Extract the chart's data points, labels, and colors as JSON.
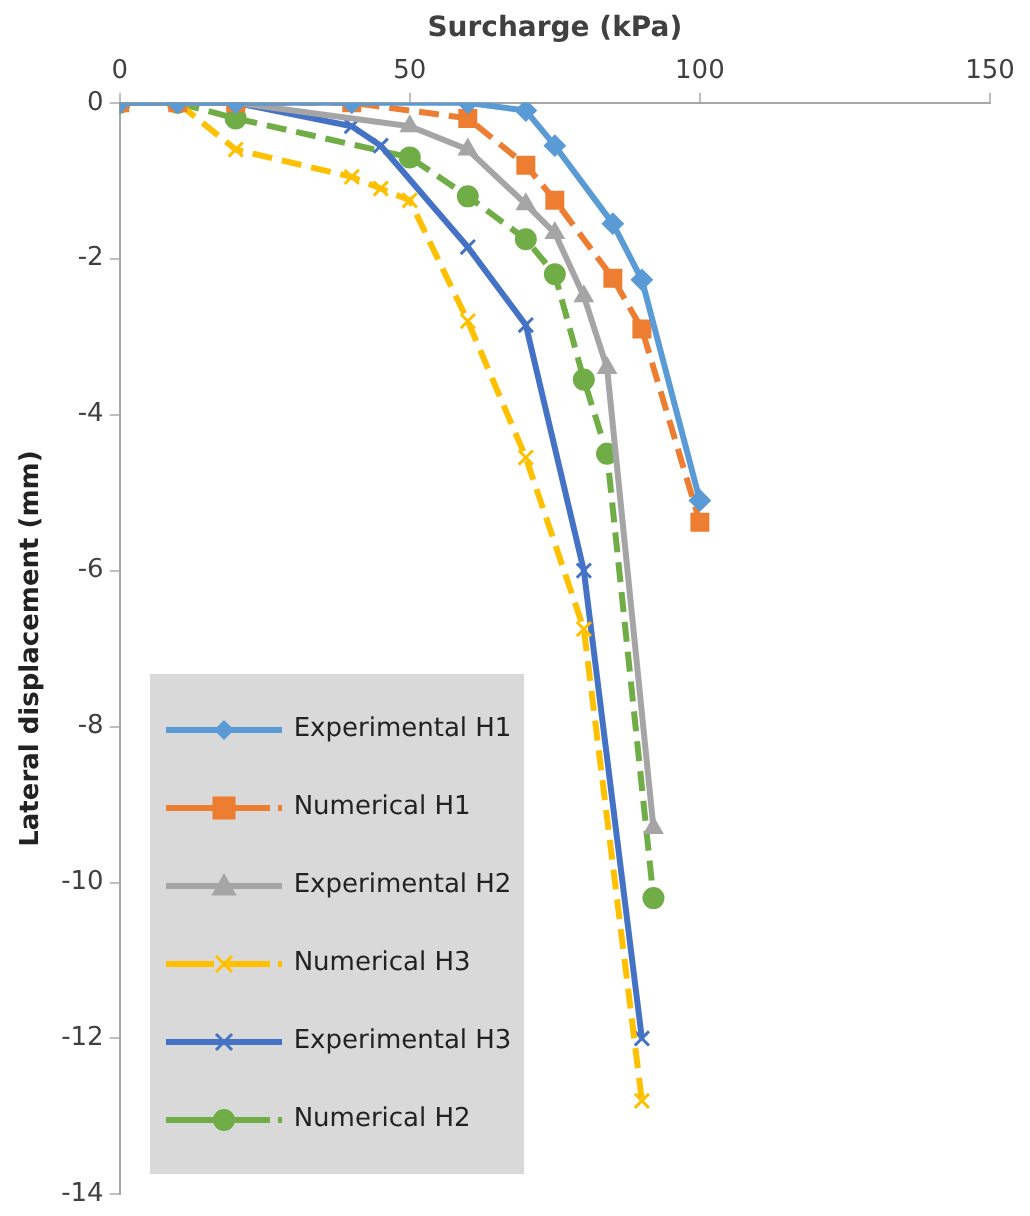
{
  "chart_data": {
    "type": "line",
    "xlabel": "Surcharge (kPa)",
    "ylabel": "Lateral displacement (mm)",
    "xlim": [
      0,
      150
    ],
    "xticks": [
      0,
      50,
      100,
      150
    ],
    "ylim": [
      -14,
      0
    ],
    "yticks": [
      -14,
      -12,
      -10,
      -8,
      -6,
      -4,
      -2,
      0
    ],
    "grid": false,
    "legend": "bottom left",
    "series": [
      {
        "name": "Experimental H1",
        "color": "#5b9bd5",
        "marker": "diamond",
        "line_style": "solid",
        "x": [
          0,
          10,
          20,
          40,
          60,
          70,
          75,
          85,
          90,
          100
        ],
        "values": [
          0,
          0,
          0,
          0,
          0,
          -0.1,
          -0.55,
          -1.55,
          -2.27,
          -5.1
        ]
      },
      {
        "name": "Numerical H1",
        "color": "#ed7d31",
        "marker": "square",
        "line_style": "dashed",
        "x": [
          0,
          10,
          20,
          40,
          60,
          70,
          75,
          85,
          90,
          100
        ],
        "values": [
          0,
          0,
          0,
          0,
          -0.2,
          -0.8,
          -1.25,
          -2.25,
          -2.9,
          -5.38
        ]
      },
      {
        "name": "Experimental H2",
        "color": "#a5a5a5",
        "marker": "triangle",
        "line_style": "solid",
        "x": [
          0,
          10,
          20,
          50,
          60,
          70,
          75,
          80,
          84,
          92
        ],
        "values": [
          0,
          0,
          0,
          -0.3,
          -0.6,
          -1.3,
          -1.67,
          -2.48,
          -3.4,
          -9.3
        ]
      },
      {
        "name": "Numerical H3",
        "color": "#ffc000",
        "marker": "cross",
        "line_style": "dashed",
        "x": [
          0,
          10,
          20,
          40,
          45,
          50,
          60,
          70,
          80,
          90
        ],
        "values": [
          0,
          0,
          -0.6,
          -0.95,
          -1.1,
          -1.25,
          -2.8,
          -4.55,
          -6.75,
          -12.8
        ]
      },
      {
        "name": "Experimental H3",
        "color": "#4472c4",
        "marker": "cross",
        "line_style": "solid",
        "x": [
          0,
          10,
          20,
          40,
          45,
          60,
          70,
          80,
          90
        ],
        "values": [
          0,
          0,
          0,
          -0.3,
          -0.55,
          -1.85,
          -2.85,
          -6,
          -12
        ]
      },
      {
        "name": "Numerical H2",
        "color": "#70ad47",
        "marker": "circle",
        "line_style": "dashed",
        "x": [
          0,
          10,
          20,
          50,
          60,
          70,
          75,
          80,
          84,
          92
        ],
        "values": [
          0,
          0,
          -0.2,
          -0.7,
          -1.2,
          -1.75,
          -2.2,
          -3.55,
          -4.5,
          -10.2
        ]
      }
    ]
  }
}
